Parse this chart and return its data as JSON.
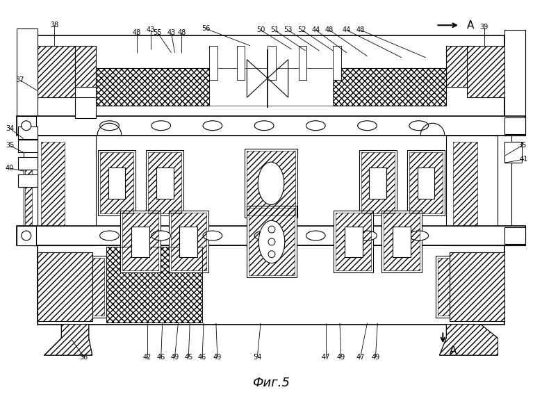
{
  "title": "Фиг.5",
  "bg_color": "#ffffff",
  "fig_width": 7.8,
  "fig_height": 5.87,
  "dpi": 100
}
